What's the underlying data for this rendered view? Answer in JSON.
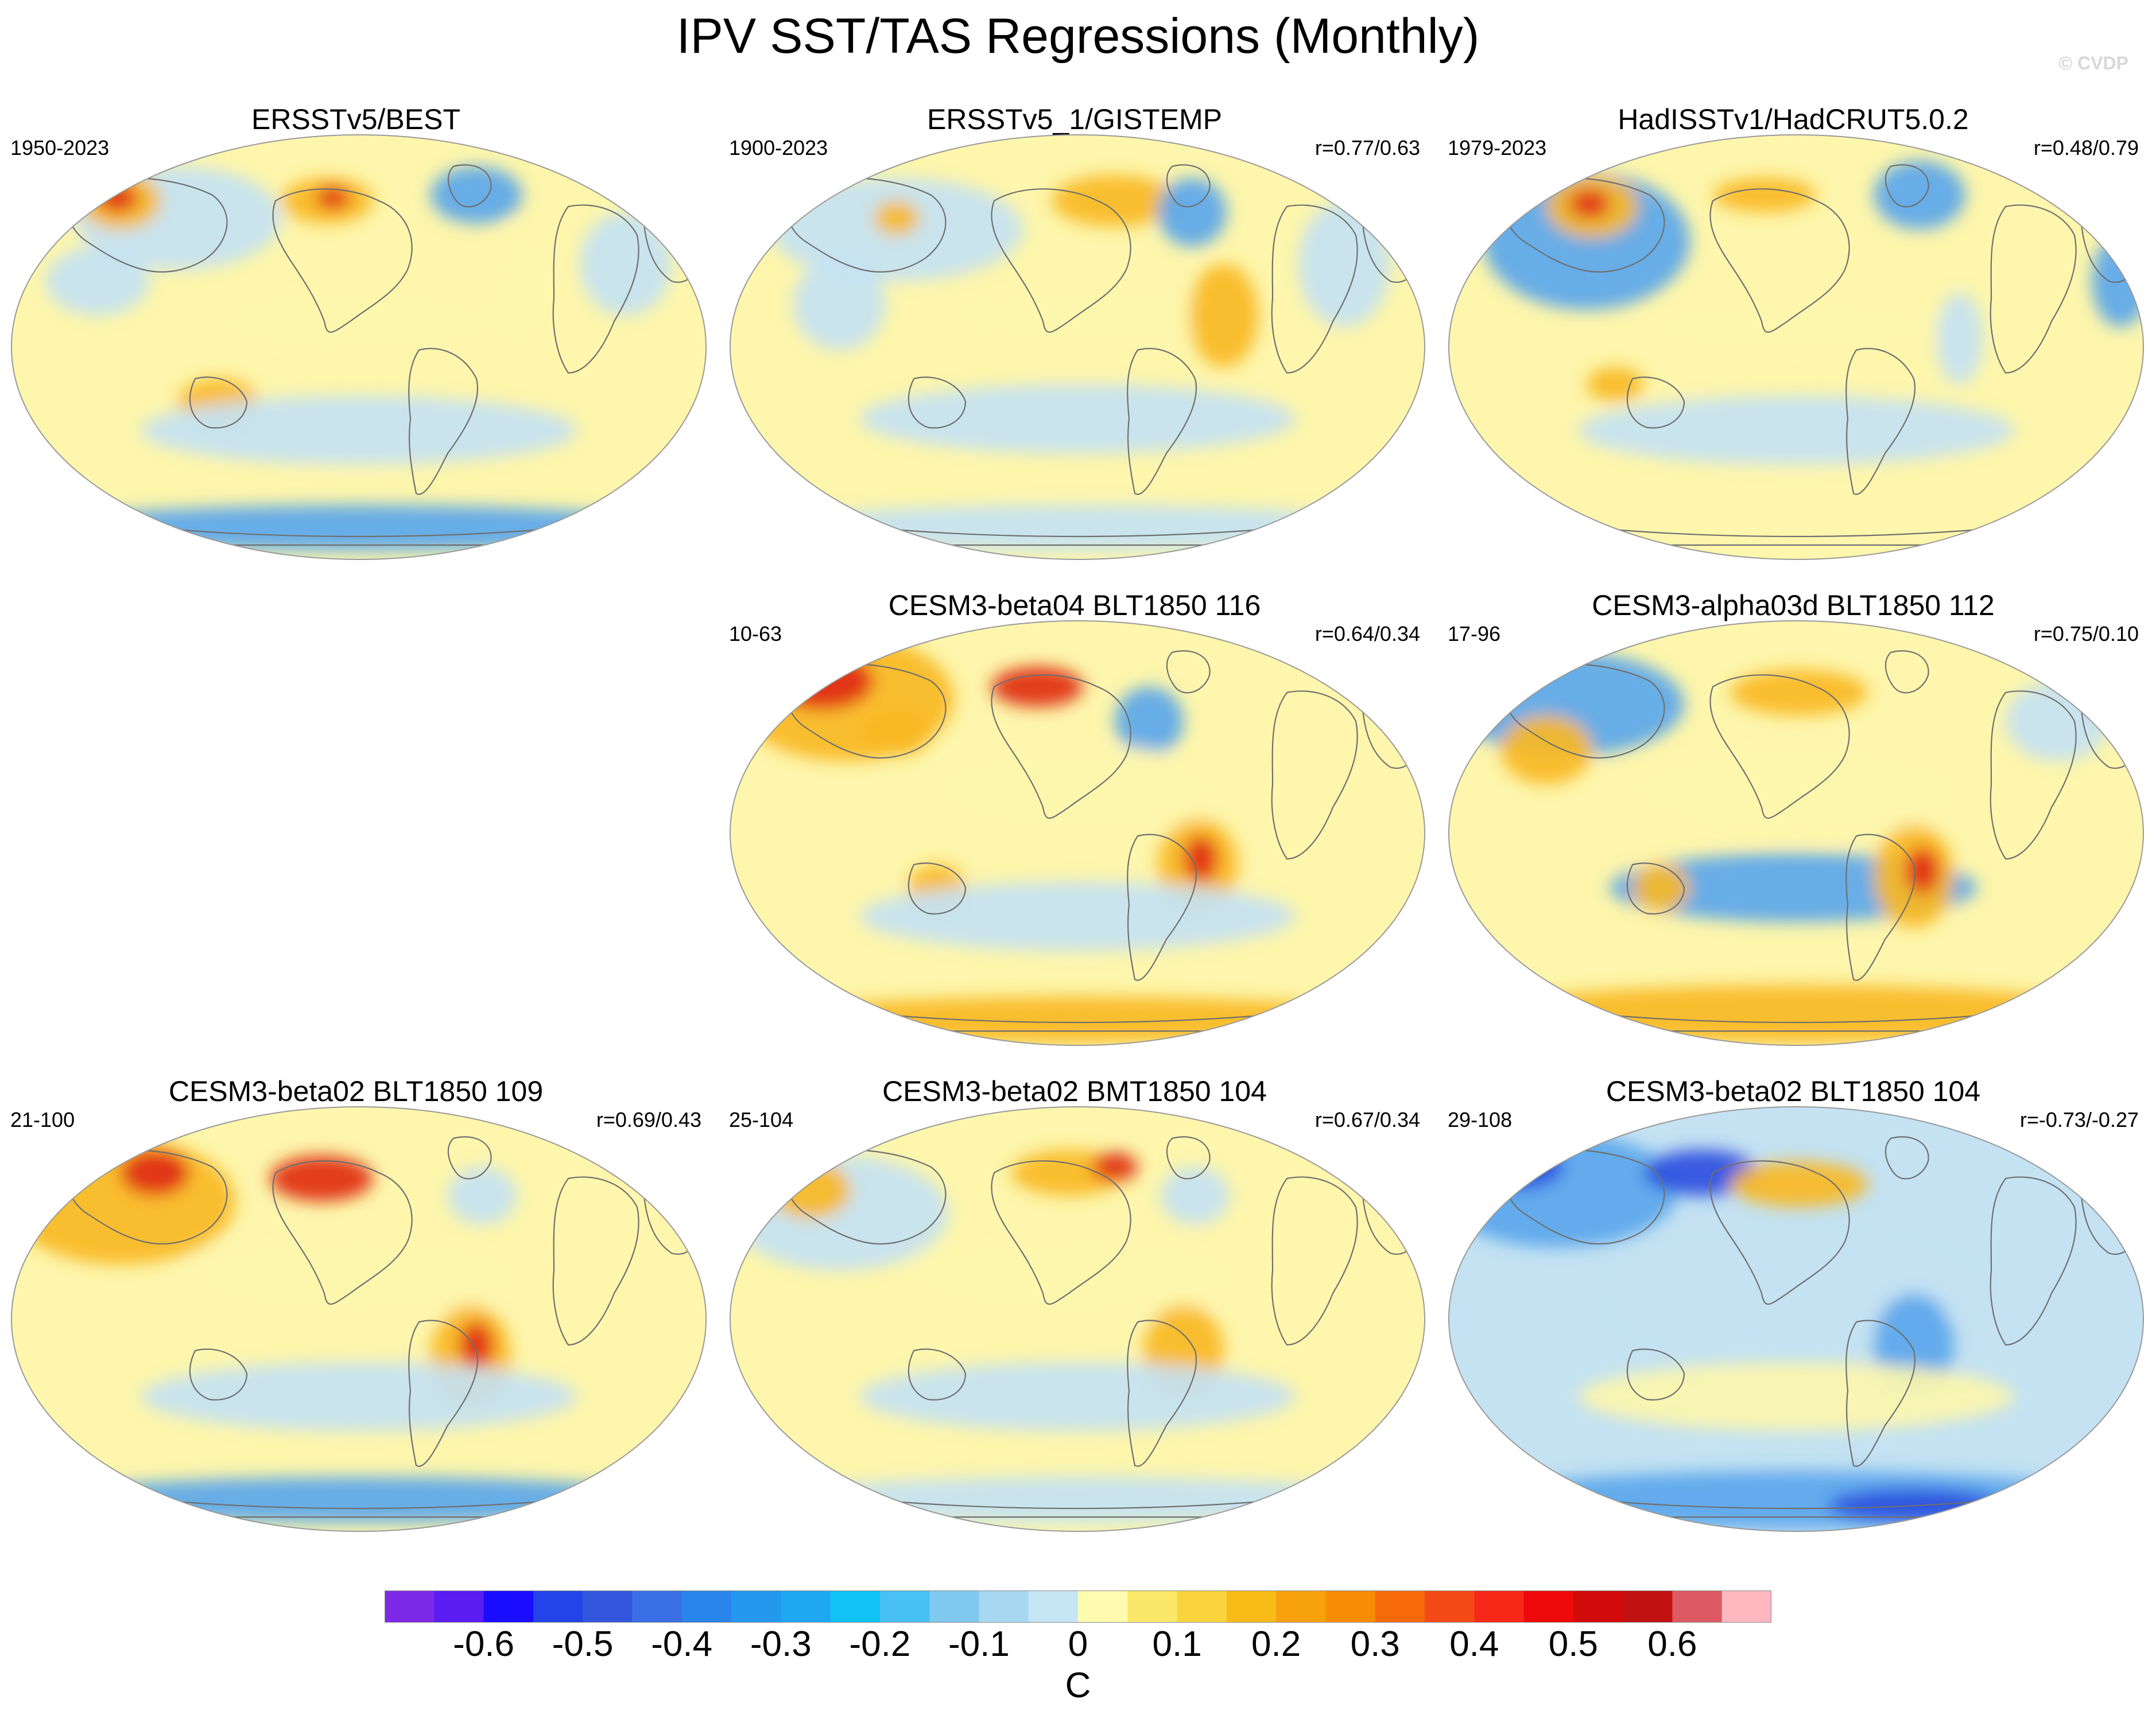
{
  "title": "IPV SST/TAS Regressions (Monthly)",
  "copyright": "© CVDP",
  "panels": [
    {
      "title": "ERSSTv5/BEST",
      "years": "1950-2023",
      "corr": ""
    },
    {
      "title": "ERSSTv5_1/GISTEMP",
      "years": "1900-2023",
      "corr": "r=0.77/0.63"
    },
    {
      "title": "HadISSTv1/HadCRUT5.0.2",
      "years": "1979-2023",
      "corr": "r=0.48/0.79"
    },
    {
      "title": "CESM3-beta04 BLT1850 116",
      "years": "10-63",
      "corr": "r=0.64/0.34"
    },
    {
      "title": "CESM3-alpha03d BLT1850 112",
      "years": "17-96",
      "corr": "r=0.75/0.10"
    },
    {
      "title": "CESM3-beta02 BLT1850 109",
      "years": "21-100",
      "corr": "r=0.69/0.43"
    },
    {
      "title": "CESM3-beta02 BMT1850 104",
      "years": "25-104",
      "corr": "r=0.67/0.34"
    },
    {
      "title": "CESM3-beta02 BLT1850 104",
      "years": "29-108",
      "corr": "r=-0.73/-0.27"
    }
  ],
  "colorbar": {
    "units": "C",
    "tick_labels": [
      "-0.6",
      "-0.5",
      "-0.4",
      "-0.3",
      "-0.2",
      "-0.1",
      "0",
      "0.1",
      "0.2",
      "0.3",
      "0.4",
      "0.5",
      "0.6"
    ],
    "colors": [
      "#7d2ae8",
      "#5a1cf0",
      "#1a0dff",
      "#2244e8",
      "#3355dd",
      "#3a6ee6",
      "#2a85ea",
      "#2497ee",
      "#1ea8f2",
      "#10c2f6",
      "#48c0f4",
      "#7fcaee",
      "#a6d8f2",
      "#c6e6f6",
      "#fffcb0",
      "#fce868",
      "#fad43c",
      "#f8bb18",
      "#f7a10c",
      "#f78c06",
      "#f66a0c",
      "#f44a18",
      "#f82818",
      "#ee0a0a",
      "#d20a0a",
      "#c01010",
      "#de5a62",
      "#ffb8c0"
    ]
  },
  "palette": {
    "yellow": "#fdf6ac",
    "blue": "#c4e2f2",
    "orange": "#f8b822",
    "red": "#e02a12",
    "deep_blue": "#2c4ee0",
    "mid_blue": "#5aa6ec"
  }
}
